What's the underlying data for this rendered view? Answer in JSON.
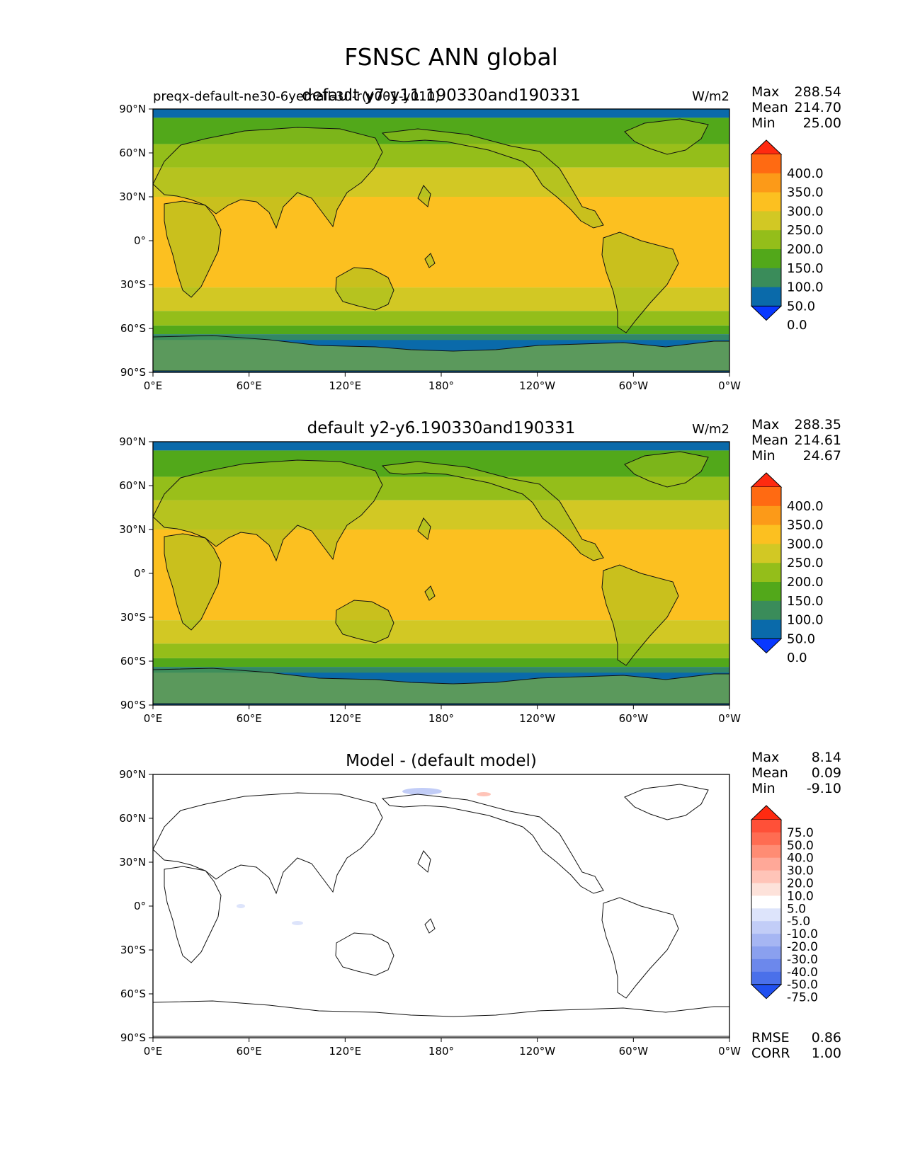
{
  "figure_title": "FSNSC ANN global",
  "x_ticks": [
    "0°E",
    "60°E",
    "120°E",
    "180°",
    "120°W",
    "60°W",
    "0°W"
  ],
  "y_ticks": [
    "90°N",
    "60°N",
    "30°N",
    "0°",
    "30°S",
    "60°S",
    "90°S"
  ],
  "chart_data": [
    {
      "type": "heatmap",
      "panel": "test",
      "overlay_label": "preqx-default-ne30-6yemall-30-r(y001-y010)",
      "title": "default y7-y11.190330and190331",
      "units": "W/m2",
      "stats": [
        {
          "label": "Max",
          "value": "288.54"
        },
        {
          "label": "Mean",
          "value": "214.70"
        },
        {
          "label": "Min",
          "value": "25.00"
        }
      ],
      "colorbar": {
        "levels": [
          "400.0",
          "350.0",
          "300.0",
          "250.0",
          "200.0",
          "150.0",
          "100.0",
          "50.0",
          "0.0"
        ],
        "colors": [
          "#ff2a10",
          "#ff6a12",
          "#fc9a18",
          "#fcc020",
          "#d2c824",
          "#94be1a",
          "#52a81a",
          "#3a8c5a",
          "#0a6aaa",
          "#0838ff"
        ]
      },
      "zonal_bands": [
        {
          "lat_from": 90,
          "lat_to": 84,
          "value_range": "50-100"
        },
        {
          "lat_from": 84,
          "lat_to": 66,
          "value_range": "100-150"
        },
        {
          "lat_from": 66,
          "lat_to": 50,
          "value_range": "150-200"
        },
        {
          "lat_from": 50,
          "lat_to": 30,
          "value_range": "200-250"
        },
        {
          "lat_from": 30,
          "lat_to": -32,
          "value_range": "250-300"
        },
        {
          "lat_from": -32,
          "lat_to": -48,
          "value_range": "200-250"
        },
        {
          "lat_from": -48,
          "lat_to": -58,
          "value_range": "150-200"
        },
        {
          "lat_from": -58,
          "lat_to": -64,
          "value_range": "100-150"
        },
        {
          "lat_from": -64,
          "lat_to": -90,
          "value_range": "50-100"
        }
      ]
    },
    {
      "type": "heatmap",
      "panel": "reference",
      "title": "default y2-y6.190330and190331",
      "units": "W/m2",
      "stats": [
        {
          "label": "Max",
          "value": "288.35"
        },
        {
          "label": "Mean",
          "value": "214.61"
        },
        {
          "label": "Min",
          "value": "24.67"
        }
      ],
      "colorbar": {
        "levels": [
          "400.0",
          "350.0",
          "300.0",
          "250.0",
          "200.0",
          "150.0",
          "100.0",
          "50.0",
          "0.0"
        ],
        "colors": [
          "#ff2a10",
          "#ff6a12",
          "#fc9a18",
          "#fcc020",
          "#d2c824",
          "#94be1a",
          "#52a81a",
          "#3a8c5a",
          "#0a6aaa",
          "#0838ff"
        ]
      },
      "zonal_bands": [
        {
          "lat_from": 90,
          "lat_to": 84,
          "value_range": "50-100"
        },
        {
          "lat_from": 84,
          "lat_to": 66,
          "value_range": "100-150"
        },
        {
          "lat_from": 66,
          "lat_to": 50,
          "value_range": "150-200"
        },
        {
          "lat_from": 50,
          "lat_to": 30,
          "value_range": "200-250"
        },
        {
          "lat_from": 30,
          "lat_to": -32,
          "value_range": "250-300"
        },
        {
          "lat_from": -32,
          "lat_to": -48,
          "value_range": "200-250"
        },
        {
          "lat_from": -48,
          "lat_to": -58,
          "value_range": "150-200"
        },
        {
          "lat_from": -58,
          "lat_to": -64,
          "value_range": "100-150"
        },
        {
          "lat_from": -64,
          "lat_to": -90,
          "value_range": "50-100"
        }
      ]
    },
    {
      "type": "heatmap",
      "panel": "difference",
      "title": "Model - (default model)",
      "units": "",
      "stats": [
        {
          "label": "Max",
          "value": "8.14"
        },
        {
          "label": "Mean",
          "value": "0.09"
        },
        {
          "label": "Min",
          "value": "-9.10"
        }
      ],
      "colorbar": {
        "levels": [
          "75.0",
          "50.0",
          "40.0",
          "30.0",
          "20.0",
          "10.0",
          "5.0",
          "-5.0",
          "-10.0",
          "-20.0",
          "-30.0",
          "-40.0",
          "-50.0",
          "-75.0"
        ],
        "colors": [
          "#ff2a10",
          "#ff5038",
          "#ff6c52",
          "#ff8c74",
          "#ffa898",
          "#ffc4b8",
          "#fde2da",
          "#ffffff",
          "#dde4fb",
          "#c2cdf7",
          "#a6b6f3",
          "#8aa0ef",
          "#6c88ec",
          "#4a70ea",
          "#2050f0"
        ]
      },
      "scores": [
        {
          "label": "RMSE",
          "value": "0.86"
        },
        {
          "label": "CORR",
          "value": "1.00"
        }
      ]
    }
  ]
}
